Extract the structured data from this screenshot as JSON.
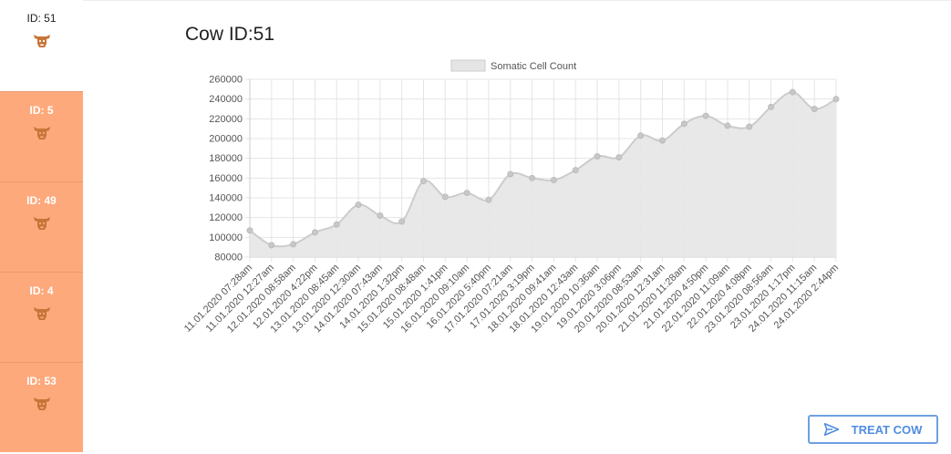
{
  "cow_list": {
    "items": [
      {
        "label": "ID: 51",
        "selected": true
      },
      {
        "label": "ID: 5",
        "selected": false
      },
      {
        "label": "ID: 49",
        "selected": false
      },
      {
        "label": "ID: 4",
        "selected": false
      },
      {
        "label": "ID: 53",
        "selected": false
      }
    ],
    "icon": "cow-head-icon",
    "colors": {
      "item_bg": "#fda97c",
      "icon": "#c87538",
      "selected_bg": "#ffffff"
    }
  },
  "page": {
    "title": "Cow ID:51"
  },
  "actions": {
    "treat_label": "TREAT COW",
    "treat_icon": "send-icon",
    "accent": "#4f8de0"
  },
  "chart_data": {
    "type": "area",
    "legend_position": "top",
    "grid": true,
    "series": [
      {
        "name": "Somatic Cell Count",
        "fill_color": "#e5e5e5",
        "line_color": "#cccccc",
        "values": [
          107000,
          92000,
          93000,
          105000,
          113000,
          133000,
          122000,
          116000,
          157000,
          141000,
          145000,
          138000,
          164000,
          160000,
          158000,
          168000,
          182000,
          181000,
          203000,
          198000,
          215000,
          223000,
          213000,
          212000,
          232000,
          247000,
          230000,
          240000
        ]
      }
    ],
    "categories": [
      "11.01.2020 07:28am",
      "11.01.2020 12:27am",
      "12.01.2020 08:58am",
      "12.01.2020 4:22pm",
      "13.01.2020 08:45am",
      "13.01.2020 12:30am",
      "14.01.2020 07:43am",
      "14.01.2020 1:32pm",
      "15.01.2020 08:48am",
      "15.01.2020 1:41pm",
      "16.01.2020 09:10am",
      "16.01.2020 5:40pm",
      "17.01.2020 07:21am",
      "17.01.2020 3:19pm",
      "18.01.2020 09:41am",
      "18.01.2020 12:43am",
      "19.01.2020 10:36am",
      "19.01.2020 3:06pm",
      "20.01.2020 08:53am",
      "20.01.2020 12:31am",
      "21.01.2020 11:28am",
      "21.01.2020 4:50pm",
      "22.01.2020 11:09am",
      "22.01.2020 4:08pm",
      "23.01.2020 08:56am",
      "23.01.2020 1:17pm",
      "24.01.2020 11:15am",
      "24.01.2020 2:44pm"
    ],
    "y_ticks": [
      "80000",
      "100000",
      "120000",
      "140000",
      "160000",
      "180000",
      "200000",
      "220000",
      "240000",
      "260000"
    ],
    "ylim": [
      80000,
      260000
    ],
    "xlabel": "",
    "ylabel": ""
  }
}
